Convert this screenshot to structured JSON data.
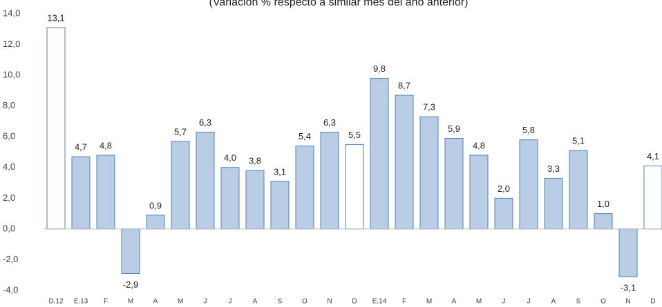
{
  "chart_data": {
    "type": "bar",
    "subtitle": "(Variación % respecto a similar mes del año anterior)",
    "categories": [
      "D.12",
      "E.13",
      "F",
      "M",
      "A",
      "M",
      "J",
      "J",
      "A",
      "S",
      "O",
      "N",
      "D",
      "E.14",
      "F",
      "M",
      "A",
      "M",
      "J",
      "J",
      "A",
      "S",
      "O",
      "N",
      "D"
    ],
    "values": [
      13.1,
      4.7,
      4.8,
      -2.9,
      0.9,
      5.7,
      6.3,
      4.0,
      3.8,
      3.1,
      5.4,
      6.3,
      5.5,
      9.8,
      8.7,
      7.3,
      5.9,
      4.8,
      2.0,
      5.8,
      3.3,
      5.1,
      1.0,
      -3.1,
      4.1
    ],
    "value_labels": [
      "13,1",
      "4,7",
      "4,8",
      "-2,9",
      "0,9",
      "5,7",
      "6,3",
      "4,0",
      "3,8",
      "3,1",
      "5,4",
      "6,3",
      "5,5",
      "9,8",
      "8,7",
      "7,3",
      "5,9",
      "4,8",
      "2,0",
      "5,8",
      "3,3",
      "5,1",
      "1,0",
      "-3,1",
      "4,1"
    ],
    "colors": [
      "#ffffff",
      "#b9cde5",
      "#b9cde5",
      "#b9cde5",
      "#b9cde5",
      "#b9cde5",
      "#b9cde5",
      "#b9cde5",
      "#b9cde5",
      "#b9cde5",
      "#b9cde5",
      "#b9cde5",
      "#ffffff",
      "#b9cde5",
      "#b9cde5",
      "#b9cde5",
      "#b9cde5",
      "#b9cde5",
      "#b9cde5",
      "#b9cde5",
      "#b9cde5",
      "#b9cde5",
      "#b9cde5",
      "#b9cde5",
      "#ffffff"
    ],
    "edgecolor": "#4f81bd",
    "ylim": [
      -4,
      14
    ],
    "yticks": [
      {
        "value": -4,
        "label": "-4,0"
      },
      {
        "value": -2,
        "label": "-2,0"
      },
      {
        "value": 0,
        "label": "0,0"
      },
      {
        "value": 2,
        "label": "2,0"
      },
      {
        "value": 4,
        "label": "4,0"
      },
      {
        "value": 6,
        "label": "6,0"
      },
      {
        "value": 8,
        "label": "8,0"
      },
      {
        "value": 10,
        "label": "10,0"
      },
      {
        "value": 12,
        "label": "12,0"
      },
      {
        "value": 14,
        "label": "14,0"
      }
    ]
  }
}
